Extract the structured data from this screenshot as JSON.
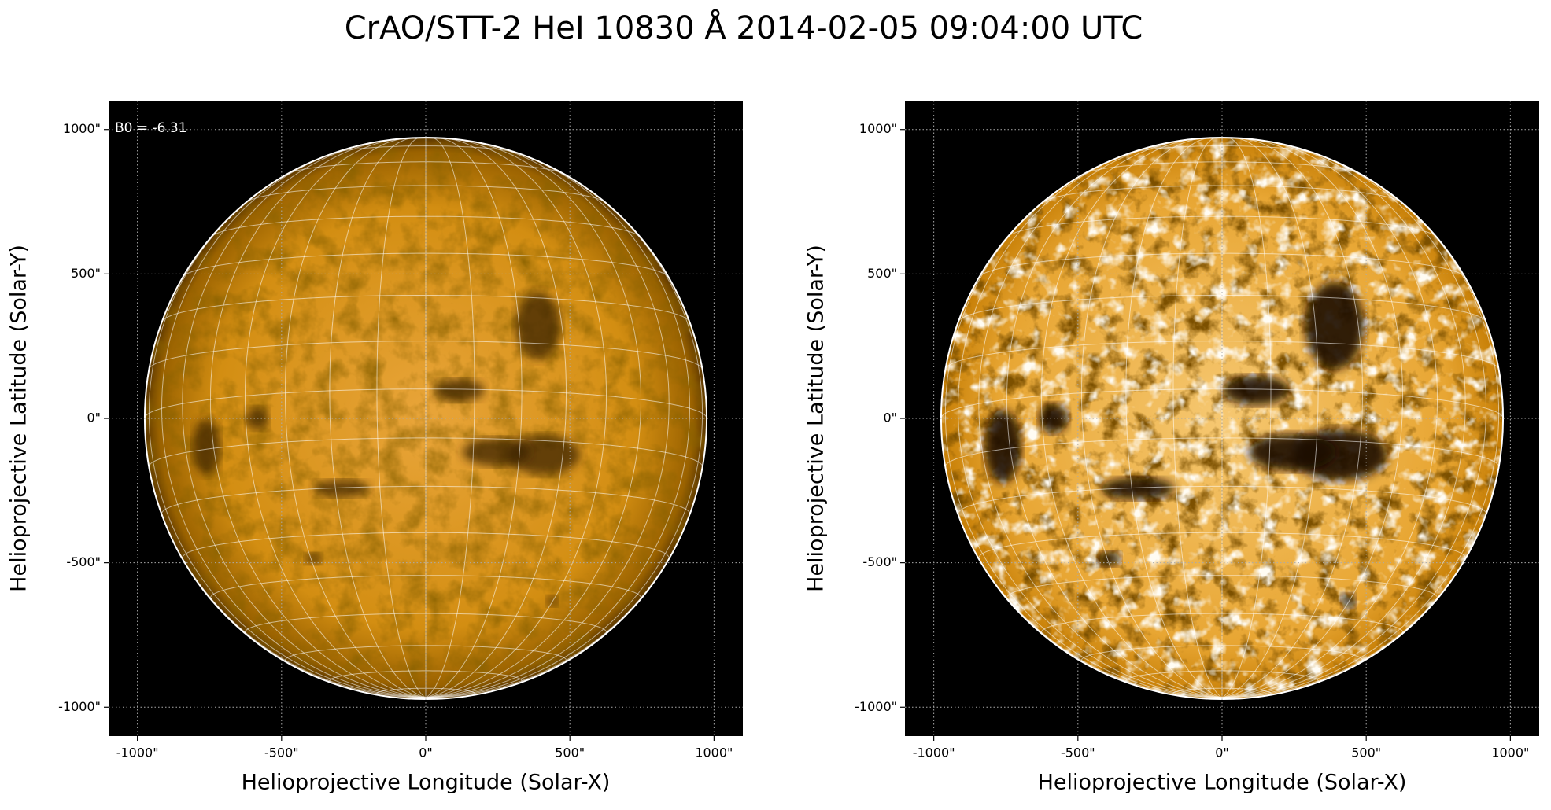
{
  "title": "CrAO/STT-2 HeI 10830 Å 2014-02-05 09:04:00 UTC",
  "chart_data": [
    {
      "type": "image",
      "xlabel": "Helioprojective Longitude (Solar-X)",
      "ylabel": "Helioprojective Latitude (Solar-Y)",
      "annotation": "B0 = -6.31",
      "xlim": [
        -1100,
        1100
      ],
      "ylim": [
        -1100,
        1100
      ],
      "xticks": [
        {
          "value": -1000,
          "label": "-1000\""
        },
        {
          "value": -500,
          "label": "-500\""
        },
        {
          "value": 0,
          "label": "0\""
        },
        {
          "value": 500,
          "label": "500\""
        },
        {
          "value": 1000,
          "label": "1000\""
        }
      ],
      "yticks": [
        {
          "value": -1000,
          "label": "-1000\""
        },
        {
          "value": -500,
          "label": "-500\""
        },
        {
          "value": 0,
          "label": "0\""
        },
        {
          "value": 500,
          "label": "500\""
        },
        {
          "value": 1000,
          "label": "1000\""
        }
      ],
      "grid": true,
      "contrast": "normal"
    },
    {
      "type": "image",
      "xlabel": "Helioprojective Longitude (Solar-X)",
      "ylabel": "Helioprojective Latitude (Solar-Y)",
      "xlim": [
        -1100,
        1100
      ],
      "ylim": [
        -1100,
        1100
      ],
      "xticks": [
        {
          "value": -1000,
          "label": "-1000\""
        },
        {
          "value": -500,
          "label": "-500\""
        },
        {
          "value": 0,
          "label": "0\""
        },
        {
          "value": 500,
          "label": "500\""
        },
        {
          "value": 1000,
          "label": "1000\""
        }
      ],
      "yticks": [
        {
          "value": -1000,
          "label": "-1000\""
        },
        {
          "value": -500,
          "label": "-500\""
        },
        {
          "value": 0,
          "label": "0\""
        },
        {
          "value": 500,
          "label": "500\""
        },
        {
          "value": 1000,
          "label": "1000\""
        }
      ],
      "grid": true,
      "contrast": "high"
    }
  ]
}
